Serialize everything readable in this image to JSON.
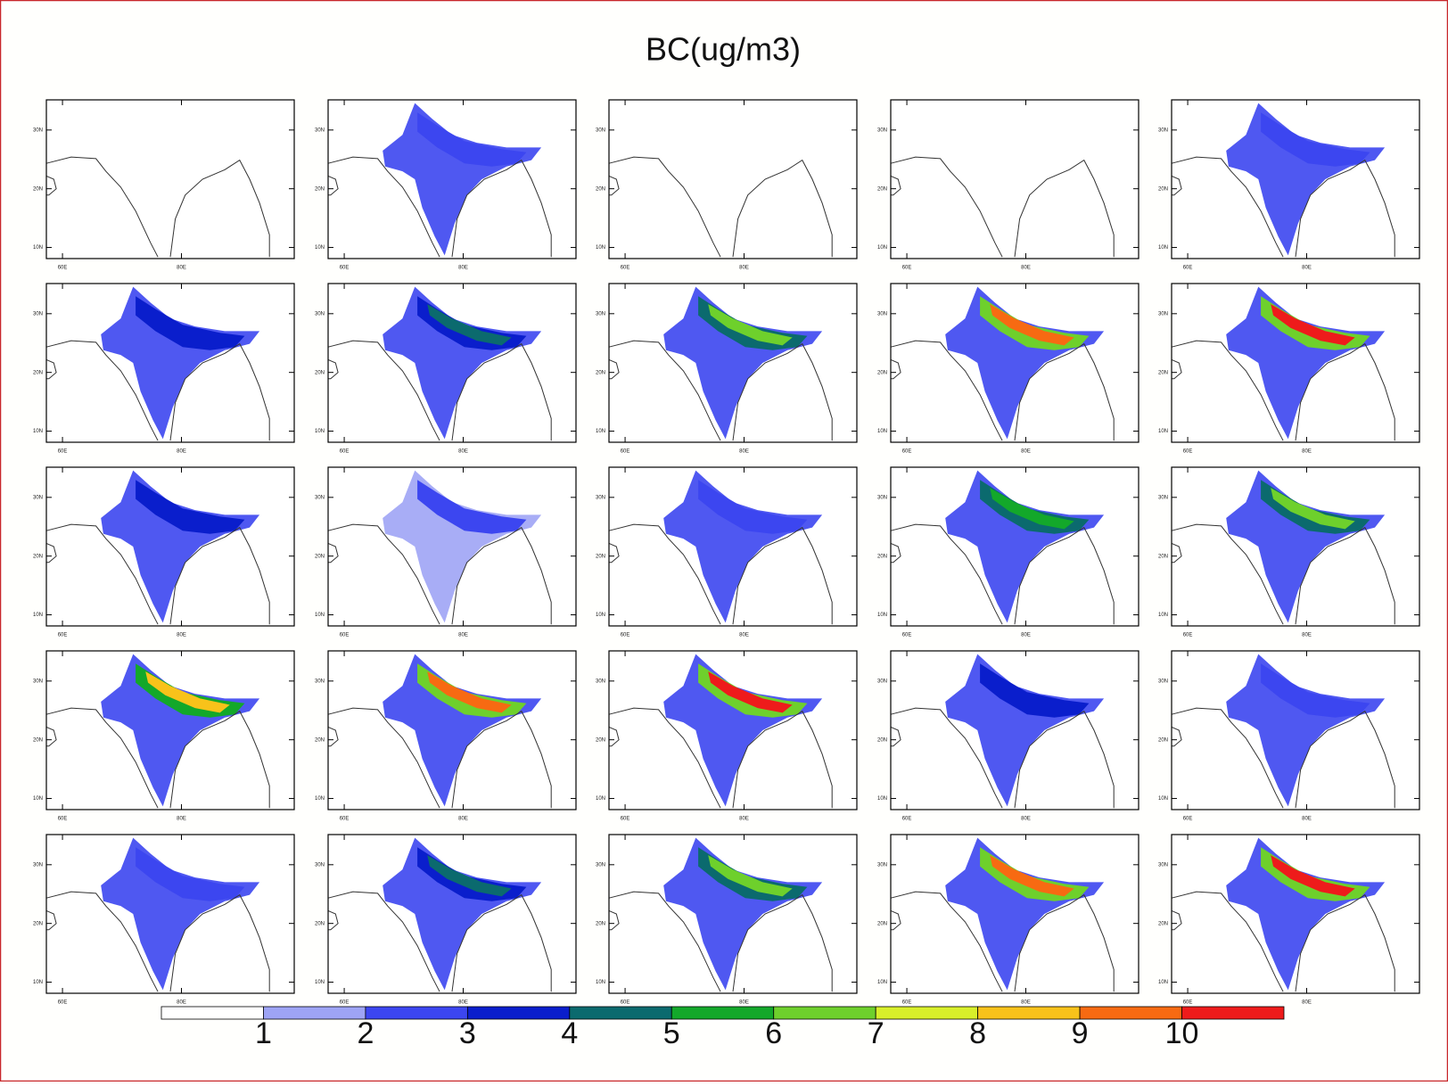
{
  "title": "BC(ug/m3)",
  "panel_axes": {
    "lat_labels": [
      "30N",
      "20N",
      "10N"
    ],
    "lon_labels": [
      "60E",
      "80E"
    ]
  },
  "colorbar": {
    "levels": [
      1,
      2,
      3,
      4,
      5,
      6,
      7,
      8,
      9,
      10
    ],
    "colors": [
      "#ffffff",
      "#9ea4f5",
      "#3c46f0",
      "#0a1ecc",
      "#0b6a6e",
      "#13a82a",
      "#6ed02c",
      "#d8ef2a",
      "#f8c21a",
      "#f76a12",
      "#ee1b1b"
    ]
  }
}
